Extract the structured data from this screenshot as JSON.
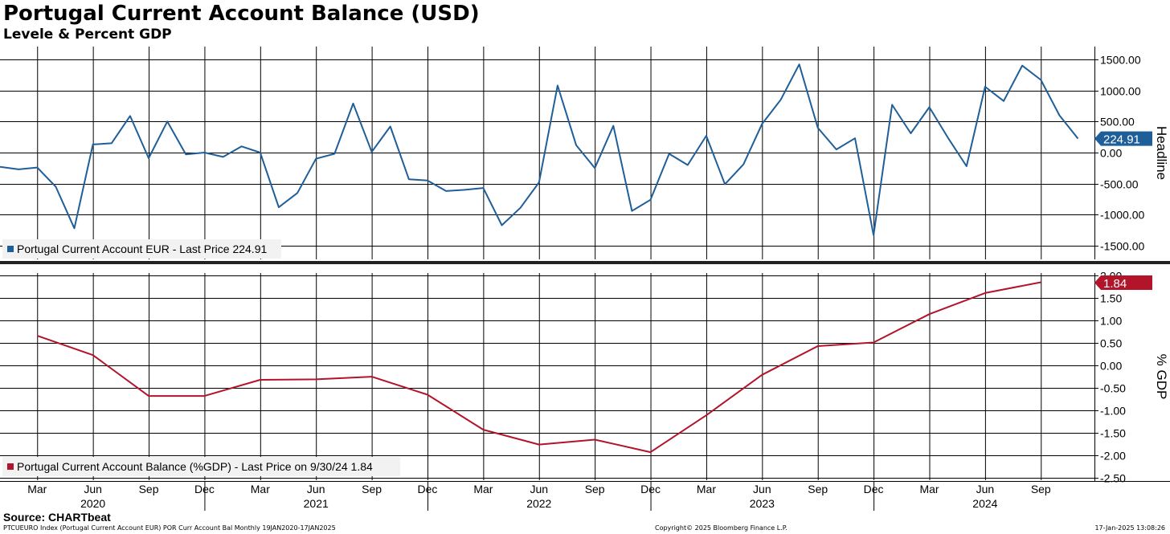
{
  "header": {
    "title": "Portugal Current Account Balance (USD)",
    "subtitle": "Levele & Percent GDP"
  },
  "footer": {
    "source": "Source: CHARTbeat",
    "index_info": "PTCUEURO Index (Portugal Current Account EUR) POR Curr Account Bal  Monthly 19JAN2020-17JAN2025",
    "copyright": "Copyright© 2025 Bloomberg Finance L.P.",
    "timestamp": "17-Jan-2025 13:08:26"
  },
  "colors": {
    "headline": "#1f5f99",
    "gdp": "#b2142a",
    "grid": "#000000"
  },
  "x_axis": {
    "month_labels": [
      "Mar",
      "Jun",
      "Sep",
      "Dec",
      "Mar",
      "Jun",
      "Sep",
      "Dec",
      "Mar",
      "Jun",
      "Sep",
      "Dec",
      "Mar",
      "Jun",
      "Sep",
      "Dec",
      "Mar",
      "Jun",
      "Sep"
    ],
    "month_dates": [
      "2020-03",
      "2020-06",
      "2020-09",
      "2020-12",
      "2021-03",
      "2021-06",
      "2021-09",
      "2021-12",
      "2022-03",
      "2022-06",
      "2022-09",
      "2022-12",
      "2023-03",
      "2023-06",
      "2023-09",
      "2023-12",
      "2024-03",
      "2024-06",
      "2024-09"
    ],
    "year_labels": [
      "2020",
      "2021",
      "2022",
      "2023",
      "2024"
    ],
    "year_centers": [
      "2020-06",
      "2021-06",
      "2022-06",
      "2023-06",
      "2024-06"
    ],
    "range": [
      "2020-01",
      "2024-12"
    ]
  },
  "chart_data": [
    {
      "type": "line",
      "panel": "top",
      "axis_label": "Headline",
      "legend": "Portugal Current Account EUR - Last Price 224.91",
      "last_value_label": "224.91",
      "ylim": [
        -1750,
        1650
      ],
      "yticks": [
        -1500,
        -1000,
        -500,
        0,
        500,
        1000,
        1500
      ],
      "ytick_labels": [
        "-1500.00",
        "-1000.00",
        "-500.00",
        "0.00",
        "500.00",
        "1000.00",
        "1500.00"
      ],
      "x": [
        "2020-01",
        "2020-02",
        "2020-03",
        "2020-04",
        "2020-05",
        "2020-06",
        "2020-07",
        "2020-08",
        "2020-09",
        "2020-10",
        "2020-11",
        "2020-12",
        "2021-01",
        "2021-02",
        "2021-03",
        "2021-04",
        "2021-05",
        "2021-06",
        "2021-07",
        "2021-08",
        "2021-09",
        "2021-10",
        "2021-11",
        "2021-12",
        "2022-01",
        "2022-02",
        "2022-03",
        "2022-04",
        "2022-05",
        "2022-06",
        "2022-07",
        "2022-08",
        "2022-09",
        "2022-10",
        "2022-11",
        "2022-12",
        "2023-01",
        "2023-02",
        "2023-03",
        "2023-04",
        "2023-05",
        "2023-06",
        "2023-07",
        "2023-08",
        "2023-09",
        "2023-10",
        "2023-11",
        "2023-12",
        "2024-01",
        "2024-02",
        "2024-03",
        "2024-04",
        "2024-05",
        "2024-06",
        "2024-07",
        "2024-08",
        "2024-09",
        "2024-10",
        "2024-11"
      ],
      "series": [
        {
          "name": "Portugal Current Account EUR",
          "values": [
            -230,
            -270,
            -240,
            -550,
            -1220,
            130,
            150,
            590,
            -90,
            500,
            -30,
            0,
            -70,
            100,
            0,
            -880,
            -650,
            -100,
            -20,
            790,
            10,
            420,
            -430,
            -450,
            -620,
            -600,
            -570,
            -1170,
            -890,
            -480,
            1080,
            120,
            -250,
            430,
            -940,
            -760,
            -20,
            -200,
            270,
            -510,
            -190,
            460,
            850,
            1420,
            400,
            50,
            230,
            -1330,
            770,
            310,
            730,
            240,
            -220,
            1060,
            830,
            1400,
            1170,
            600,
            224.91
          ]
        }
      ]
    },
    {
      "type": "line",
      "panel": "bottom",
      "axis_label": "% GDP",
      "legend": "Portugal Current Account Balance (%GDP) - Last Price on 9/30/24 1.84",
      "last_value_label": "1.84",
      "ylim": [
        -2.7,
        2.0
      ],
      "yticks": [
        -2.5,
        -2,
        -1.5,
        -1,
        -0.5,
        0,
        0.5,
        1,
        1.5,
        2
      ],
      "ytick_labels": [
        "-2.50",
        "-2.00",
        "-1.50",
        "-1.00",
        "-0.50",
        "0.00",
        "0.50",
        "1.00",
        "1.50",
        "2.00"
      ],
      "x": [
        "2020-03",
        "2020-06",
        "2020-09",
        "2020-12",
        "2021-03",
        "2021-06",
        "2021-09",
        "2021-12",
        "2022-03",
        "2022-06",
        "2022-09",
        "2022-12",
        "2023-03",
        "2023-06",
        "2023-09",
        "2023-12",
        "2024-03",
        "2024-06",
        "2024-09"
      ],
      "series": [
        {
          "name": "Portugal Current Account Balance (%GDP)",
          "values": [
            0.65,
            0.22,
            -0.69,
            -0.69,
            -0.33,
            -0.32,
            -0.26,
            -0.66,
            -1.44,
            -1.77,
            -1.66,
            -1.94,
            -1.12,
            -0.22,
            0.42,
            0.5,
            1.13,
            1.6,
            1.84
          ]
        }
      ]
    }
  ]
}
